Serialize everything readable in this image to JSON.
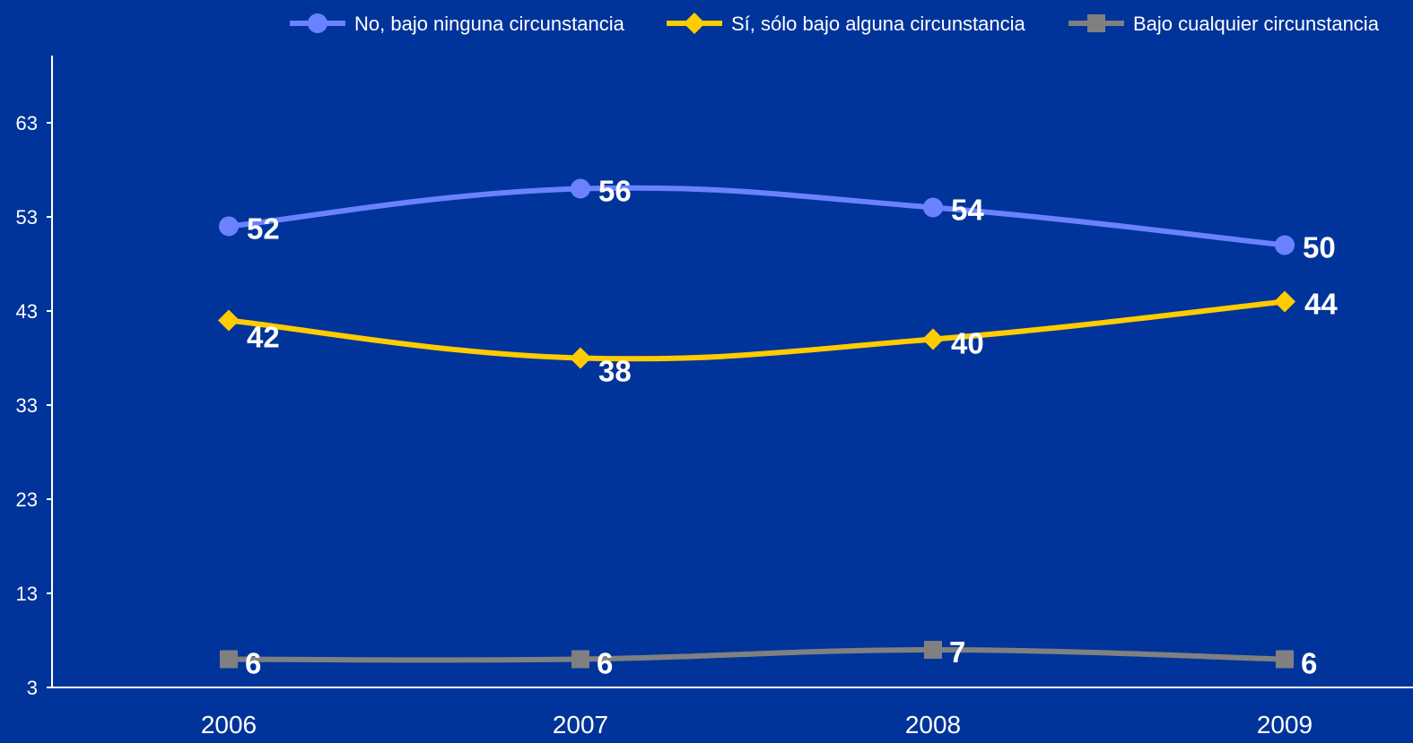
{
  "chart_data": {
    "type": "line",
    "title": "",
    "xlabel": "",
    "ylabel": "",
    "x": [
      "2006",
      "2007",
      "2008",
      "2009"
    ],
    "ylim": [
      3,
      70
    ],
    "yticks": [
      3,
      13,
      23,
      33,
      43,
      53,
      63
    ],
    "grid": false,
    "legend_position": "top-right",
    "background": "#00349a",
    "series": [
      {
        "name": "No, bajo ninguna circunstancia",
        "values": [
          52,
          56,
          54,
          50
        ],
        "color": "#6a82ff",
        "marker": "circle",
        "labels": [
          "52",
          "56",
          "54",
          "50"
        ]
      },
      {
        "name": "Sí, sólo bajo alguna circunstancia",
        "values": [
          42,
          38,
          40,
          44
        ],
        "color": "#ffcc00",
        "marker": "diamond",
        "labels": [
          "42",
          "38",
          "40",
          "44"
        ]
      },
      {
        "name": "Bajo cualquier circunstancia",
        "values": [
          6,
          6,
          7,
          6
        ],
        "color": "#808080",
        "marker": "square",
        "labels": [
          "6",
          "6",
          "7",
          "6"
        ]
      }
    ]
  }
}
